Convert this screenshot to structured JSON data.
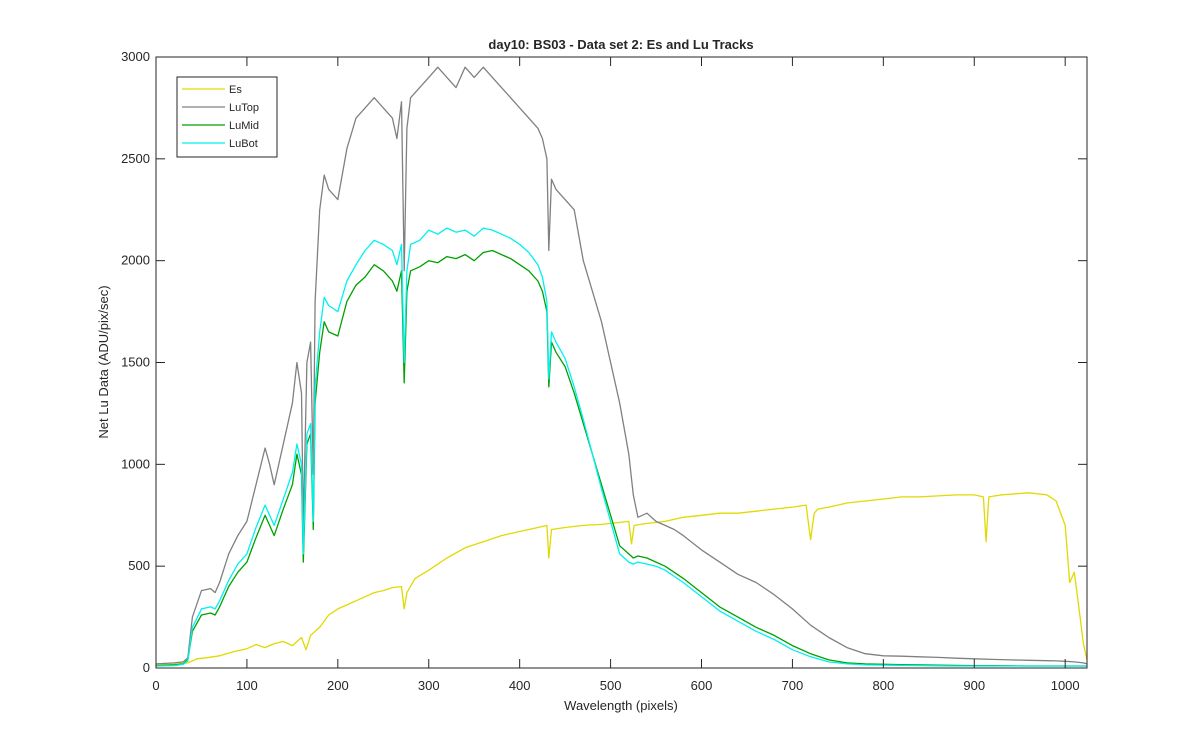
{
  "chart_data": {
    "type": "line",
    "title": "day10: BS03 - Data set 2: Es and Lu Tracks",
    "xlabel": "Wavelength (pixels)",
    "ylabel": "Net Lu Data (ADU/pix/sec)",
    "xlim": [
      0,
      1024
    ],
    "ylim": [
      0,
      3000
    ],
    "xticks": [
      0,
      100,
      200,
      300,
      400,
      500,
      600,
      700,
      800,
      900,
      1000
    ],
    "yticks": [
      0,
      500,
      1000,
      1500,
      2000,
      2500,
      3000
    ],
    "grid": false,
    "legend_position": "top-left",
    "series": [
      {
        "name": "Es",
        "color": "#e1d900",
        "x": [
          0,
          20,
          35,
          45,
          55,
          70,
          85,
          100,
          110,
          120,
          130,
          140,
          150,
          160,
          165,
          170,
          175,
          180,
          190,
          200,
          210,
          220,
          230,
          240,
          250,
          260,
          270,
          273,
          276,
          285,
          300,
          320,
          340,
          360,
          380,
          400,
          420,
          430,
          432,
          435,
          450,
          470,
          490,
          510,
          520,
          523,
          526,
          540,
          560,
          580,
          600,
          620,
          640,
          660,
          680,
          700,
          715,
          720,
          724,
          728,
          740,
          760,
          780,
          800,
          820,
          840,
          860,
          880,
          900,
          910,
          913,
          916,
          930,
          960,
          980,
          990,
          1000,
          1005,
          1010,
          1015,
          1020,
          1024
        ],
        "values": [
          15,
          18,
          25,
          45,
          50,
          60,
          80,
          95,
          115,
          100,
          120,
          130,
          110,
          150,
          90,
          160,
          180,
          200,
          260,
          290,
          310,
          330,
          350,
          370,
          380,
          395,
          400,
          290,
          370,
          440,
          480,
          540,
          590,
          620,
          650,
          670,
          690,
          700,
          540,
          680,
          690,
          700,
          705,
          715,
          720,
          610,
          700,
          710,
          720,
          740,
          750,
          760,
          760,
          770,
          780,
          790,
          800,
          630,
          760,
          780,
          790,
          810,
          820,
          830,
          840,
          840,
          845,
          850,
          850,
          840,
          620,
          840,
          850,
          860,
          850,
          820,
          700,
          420,
          470,
          300,
          120,
          40
        ]
      },
      {
        "name": "LuTop",
        "color": "#808080",
        "x": [
          0,
          20,
          30,
          35,
          40,
          50,
          60,
          65,
          70,
          80,
          90,
          100,
          110,
          120,
          125,
          130,
          140,
          150,
          155,
          160,
          162,
          166,
          170,
          173,
          175,
          180,
          185,
          190,
          200,
          210,
          220,
          230,
          240,
          250,
          260,
          265,
          270,
          273,
          276,
          280,
          290,
          300,
          310,
          320,
          330,
          340,
          350,
          360,
          370,
          380,
          390,
          400,
          410,
          420,
          425,
          430,
          432,
          435,
          440,
          450,
          460,
          470,
          480,
          490,
          500,
          510,
          520,
          525,
          530,
          540,
          550,
          560,
          570,
          580,
          600,
          620,
          640,
          660,
          680,
          700,
          720,
          740,
          760,
          780,
          800,
          820,
          840,
          860,
          880,
          900,
          920,
          940,
          960,
          980,
          990,
          1000,
          1010,
          1020,
          1024
        ],
        "values": [
          20,
          25,
          30,
          50,
          250,
          380,
          390,
          370,
          420,
          560,
          650,
          720,
          900,
          1080,
          1000,
          900,
          1100,
          1300,
          1500,
          1350,
          700,
          1500,
          1600,
          950,
          1800,
          2250,
          2420,
          2350,
          2300,
          2550,
          2700,
          2750,
          2800,
          2750,
          2700,
          2600,
          2780,
          1950,
          2650,
          2800,
          2850,
          2900,
          2950,
          2900,
          2850,
          2950,
          2900,
          2950,
          2900,
          2850,
          2800,
          2750,
          2700,
          2650,
          2600,
          2500,
          2050,
          2400,
          2350,
          2300,
          2250,
          2000,
          1850,
          1700,
          1500,
          1300,
          1050,
          850,
          740,
          760,
          720,
          700,
          680,
          650,
          580,
          520,
          460,
          420,
          360,
          290,
          210,
          150,
          100,
          70,
          60,
          58,
          55,
          52,
          48,
          45,
          42,
          40,
          38,
          36,
          35,
          33,
          30,
          25,
          20
        ]
      },
      {
        "name": "LuMid",
        "color": "#00a000",
        "x": [
          0,
          20,
          30,
          35,
          40,
          50,
          60,
          65,
          70,
          80,
          90,
          100,
          110,
          120,
          125,
          130,
          140,
          150,
          155,
          160,
          162,
          166,
          170,
          173,
          175,
          180,
          185,
          190,
          200,
          210,
          220,
          230,
          240,
          250,
          260,
          265,
          270,
          273,
          276,
          280,
          290,
          300,
          310,
          320,
          330,
          340,
          350,
          360,
          370,
          380,
          390,
          400,
          410,
          420,
          425,
          430,
          432,
          435,
          440,
          450,
          460,
          470,
          480,
          490,
          500,
          510,
          520,
          525,
          530,
          540,
          550,
          560,
          570,
          580,
          600,
          620,
          640,
          660,
          680,
          700,
          720,
          740,
          760,
          780,
          800,
          820,
          840,
          860,
          880,
          900,
          920,
          940,
          960,
          980,
          990,
          1000,
          1010,
          1020,
          1024
        ],
        "values": [
          12,
          15,
          20,
          40,
          180,
          260,
          270,
          260,
          300,
          400,
          470,
          520,
          640,
          750,
          700,
          650,
          780,
          900,
          1050,
          950,
          520,
          1100,
          1150,
          680,
          1300,
          1550,
          1700,
          1650,
          1630,
          1800,
          1880,
          1920,
          1980,
          1950,
          1900,
          1850,
          1950,
          1400,
          1850,
          1950,
          1970,
          2000,
          1990,
          2020,
          2010,
          2030,
          2000,
          2040,
          2050,
          2030,
          2010,
          1980,
          1950,
          1900,
          1850,
          1750,
          1380,
          1600,
          1550,
          1480,
          1350,
          1200,
          1050,
          900,
          750,
          600,
          560,
          540,
          550,
          540,
          520,
          500,
          470,
          440,
          370,
          300,
          250,
          200,
          160,
          110,
          70,
          40,
          25,
          20,
          18,
          16,
          15,
          14,
          13,
          12,
          12,
          11,
          10,
          10,
          10,
          10,
          10,
          10,
          10
        ]
      },
      {
        "name": "LuBot",
        "color": "#00f0f0",
        "x": [
          0,
          20,
          30,
          35,
          40,
          50,
          60,
          65,
          70,
          80,
          90,
          100,
          110,
          120,
          125,
          130,
          140,
          150,
          155,
          160,
          162,
          166,
          170,
          173,
          175,
          180,
          185,
          190,
          200,
          210,
          220,
          230,
          240,
          250,
          260,
          265,
          270,
          273,
          276,
          280,
          290,
          300,
          310,
          320,
          330,
          340,
          350,
          360,
          370,
          380,
          390,
          400,
          410,
          420,
          425,
          430,
          432,
          435,
          440,
          450,
          460,
          470,
          480,
          490,
          500,
          510,
          520,
          525,
          530,
          540,
          550,
          560,
          570,
          580,
          600,
          620,
          640,
          660,
          680,
          700,
          720,
          740,
          760,
          780,
          800,
          820,
          840,
          860,
          880,
          900,
          920,
          940,
          960,
          980,
          990,
          1000,
          1010,
          1020,
          1024
        ],
        "values": [
          10,
          12,
          18,
          35,
          200,
          290,
          300,
          290,
          330,
          430,
          510,
          560,
          690,
          800,
          750,
          700,
          830,
          960,
          1100,
          1000,
          560,
          1150,
          1200,
          720,
          1380,
          1650,
          1820,
          1780,
          1750,
          1900,
          1980,
          2050,
          2100,
          2080,
          2050,
          1980,
          2080,
          1500,
          1950,
          2080,
          2100,
          2150,
          2130,
          2160,
          2140,
          2150,
          2120,
          2160,
          2150,
          2130,
          2110,
          2080,
          2040,
          1980,
          1920,
          1800,
          1420,
          1650,
          1600,
          1520,
          1380,
          1220,
          1050,
          880,
          720,
          560,
          520,
          510,
          520,
          510,
          500,
          480,
          450,
          420,
          350,
          280,
          230,
          180,
          140,
          90,
          55,
          30,
          20,
          15,
          14,
          13,
          12,
          11,
          10,
          10,
          10,
          10,
          10,
          10,
          10,
          10,
          10,
          10,
          10
        ]
      }
    ]
  }
}
